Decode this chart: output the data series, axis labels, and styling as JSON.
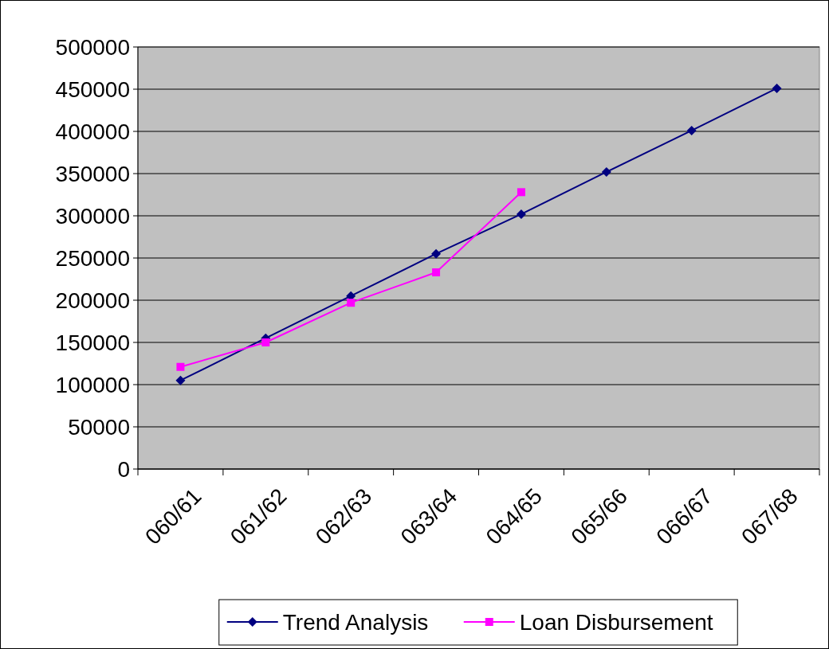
{
  "chart_data": {
    "type": "line",
    "categories": [
      "060/61",
      "061/62",
      "062/63",
      "063/64",
      "064/65",
      "065/66",
      "066/67",
      "067/68"
    ],
    "series": [
      {
        "name": "Trend Analysis",
        "color": "#000080",
        "marker": "diamond",
        "values": [
          105000,
          155000,
          205000,
          255000,
          302000,
          352000,
          401000,
          451000
        ]
      },
      {
        "name": "Loan Disbursement",
        "color": "#ff00ff",
        "marker": "square",
        "values": [
          121000,
          150000,
          197000,
          233000,
          328000,
          null,
          null,
          null
        ]
      }
    ],
    "ylim": [
      0,
      500000
    ],
    "yticks": [
      0,
      50000,
      100000,
      150000,
      200000,
      250000,
      300000,
      350000,
      400000,
      450000,
      500000
    ],
    "grid": "y",
    "legend": "bottom"
  }
}
